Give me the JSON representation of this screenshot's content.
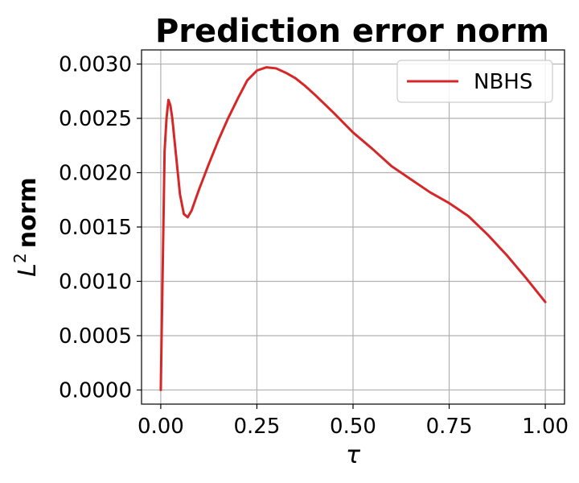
{
  "chart_data": {
    "type": "line",
    "title": "Prediction error norm",
    "xlabel": "τ",
    "ylabel_base": "L",
    "ylabel_sup": "2",
    "ylabel_rest": "norm",
    "xlim": [
      -0.05,
      1.05
    ],
    "ylim": [
      -0.00013,
      0.00313
    ],
    "xticks": [
      0.0,
      0.25,
      0.5,
      0.75,
      1.0
    ],
    "xtick_labels": [
      "0.00",
      "0.25",
      "0.50",
      "0.75",
      "1.00"
    ],
    "yticks": [
      0.0,
      0.0005,
      0.001,
      0.0015,
      0.002,
      0.0025,
      0.003
    ],
    "ytick_labels": [
      "0.0000",
      "0.0005",
      "0.0010",
      "0.0015",
      "0.0020",
      "0.0025",
      "0.0030"
    ],
    "grid": true,
    "legend_position": "top-right",
    "series": [
      {
        "name": "NBHS",
        "color": "#d62728",
        "x": [
          0.0,
          0.005,
          0.01,
          0.015,
          0.02,
          0.025,
          0.03,
          0.04,
          0.05,
          0.06,
          0.07,
          0.08,
          0.1,
          0.125,
          0.15,
          0.175,
          0.2,
          0.225,
          0.25,
          0.275,
          0.3,
          0.325,
          0.35,
          0.375,
          0.4,
          0.45,
          0.5,
          0.55,
          0.6,
          0.65,
          0.7,
          0.75,
          0.8,
          0.85,
          0.9,
          0.95,
          1.0
        ],
        "y": [
          0.0,
          0.0011,
          0.0022,
          0.0025,
          0.00267,
          0.00262,
          0.0025,
          0.00215,
          0.0018,
          0.00162,
          0.00159,
          0.00165,
          0.00185,
          0.00208,
          0.0023,
          0.0025,
          0.00268,
          0.00285,
          0.00294,
          0.00297,
          0.00296,
          0.00292,
          0.00287,
          0.0028,
          0.00272,
          0.00255,
          0.00237,
          0.00222,
          0.00206,
          0.00194,
          0.00182,
          0.00172,
          0.0016,
          0.00143,
          0.00124,
          0.00103,
          0.00081
        ]
      }
    ]
  }
}
